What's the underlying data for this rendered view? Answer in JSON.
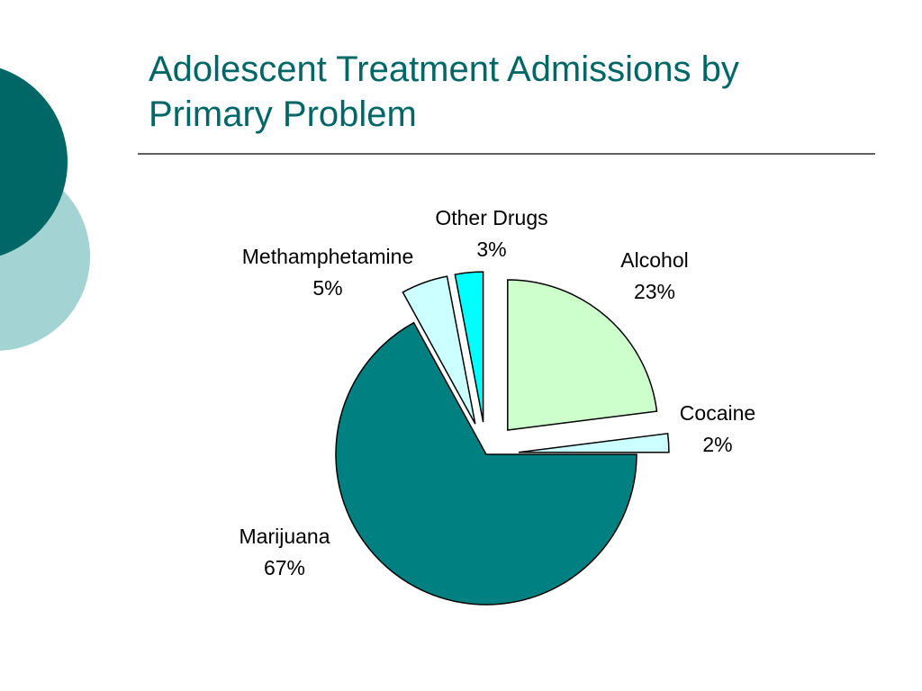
{
  "chart_data": {
    "type": "pie",
    "title": "Adolescent Treatment Admissions by Primary Problem",
    "categories": [
      "Alcohol",
      "Cocaine",
      "Marijuana",
      "Methamphetamine",
      "Other Drugs"
    ],
    "values": [
      23,
      2,
      67,
      5,
      3
    ],
    "value_labels": [
      "23%",
      "2%",
      "67%",
      "5%",
      "3%"
    ],
    "colors": [
      "#ccffcc",
      "#ccffff",
      "#008080",
      "#ccffff",
      "#00ffff"
    ]
  }
}
